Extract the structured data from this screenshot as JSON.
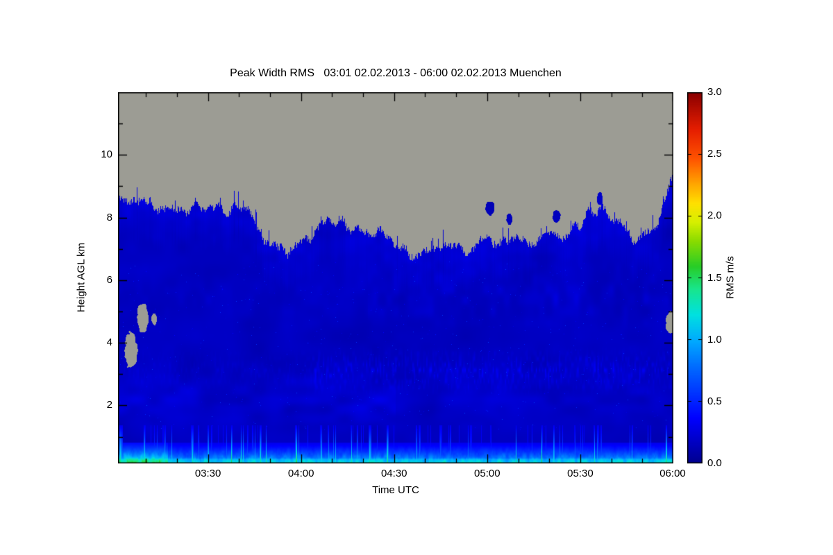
{
  "chart_data": {
    "type": "heatmap",
    "title": "Peak Width RMS   03:01 02.02.2013 - 06:00 02.02.2013 Muenchen",
    "xlabel": "Time UTC",
    "ylabel": "Height AGL km",
    "colorbar_label": "RMS m/s",
    "location": "Muenchen",
    "date": "02.02.2013",
    "time_start": "03:01",
    "time_end": "06:00",
    "duration_minutes": 179,
    "x_ticks": [
      {
        "label": "03:30",
        "minute": 29
      },
      {
        "label": "04:00",
        "minute": 59
      },
      {
        "label": "04:30",
        "minute": 89
      },
      {
        "label": "05:00",
        "minute": 119
      },
      {
        "label": "05:30",
        "minute": 149
      },
      {
        "label": "06:00",
        "minute": 179
      }
    ],
    "x_minor_interval_minutes": 10,
    "y_ticks": [
      2,
      4,
      6,
      8,
      10
    ],
    "y_minor_ticks": [
      1,
      3,
      5,
      7,
      9,
      11
    ],
    "height_range_km": [
      0.15,
      12.0
    ],
    "value_range_ms": [
      0.0,
      3.0
    ],
    "colorbar_ticks": [
      {
        "label": "0.0",
        "value": 0.0
      },
      {
        "label": "0.5",
        "value": 0.5
      },
      {
        "label": "1.0",
        "value": 1.0
      },
      {
        "label": "1.5",
        "value": 1.5
      },
      {
        "label": "2.0",
        "value": 2.0
      },
      {
        "label": "2.5",
        "value": 2.5
      },
      {
        "label": "3.0",
        "value": 3.0
      }
    ],
    "no_data_color": "#9C9C94",
    "colormap": [
      [
        0.0,
        "#00008F"
      ],
      [
        0.12,
        "#0000FF"
      ],
      [
        0.25,
        "#0064FF"
      ],
      [
        0.33,
        "#00AAFF"
      ],
      [
        0.4,
        "#00E1E1"
      ],
      [
        0.47,
        "#19E68C"
      ],
      [
        0.53,
        "#28CD28"
      ],
      [
        0.6,
        "#8CDC00"
      ],
      [
        0.65,
        "#D7F000"
      ],
      [
        0.7,
        "#FFE100"
      ],
      [
        0.75,
        "#FFAA00"
      ],
      [
        0.82,
        "#FF5500"
      ],
      [
        0.9,
        "#E61E00"
      ],
      [
        1.0,
        "#8B0000"
      ]
    ],
    "field": {
      "base_rms": 0.13,
      "cloud_top_km": [
        8.6,
        8.55,
        8.45,
        8.4,
        8.32,
        8.3,
        8.28,
        8.25,
        7.1,
        6.85,
        7.2,
        7.75,
        7.85,
        7.55,
        7.6,
        7.1,
        6.6,
        6.9,
        7.0,
        7.05,
        7.15,
        7.2,
        7.25,
        7.35,
        7.45,
        7.9,
        8.3,
        7.8,
        7.35,
        7.7,
        9.3
      ],
      "surface_band": {
        "top_km": 0.8,
        "peak_rms": 1.45,
        "left_boost_until_frac": 0.09
      },
      "layers": [
        {
          "center_km": 2.2,
          "halfwidth_km": 1.3,
          "amp": 0.12
        },
        {
          "center_km": 3.1,
          "halfwidth_km": 0.8,
          "amp": 0.14
        },
        {
          "center_km": 5.5,
          "halfwidth_km": 1.2,
          "amp": 0.1
        }
      ],
      "no_data_holes": [
        {
          "t": 0.023,
          "h_km": 3.75,
          "rt": 0.011,
          "rh_km": 0.6
        },
        {
          "t": 0.044,
          "h_km": 4.8,
          "rt": 0.01,
          "rh_km": 0.45
        },
        {
          "t": 0.065,
          "h_km": 4.75,
          "rt": 0.005,
          "rh_km": 0.18
        },
        {
          "t": 0.995,
          "h_km": 4.65,
          "rt": 0.008,
          "rh_km": 0.38
        }
      ],
      "data_islands": [
        {
          "t": 0.67,
          "h_km": 8.3,
          "rt": 0.008,
          "rh_km": 0.22
        },
        {
          "t": 0.705,
          "h_km": 7.95,
          "rt": 0.005,
          "rh_km": 0.18
        },
        {
          "t": 0.79,
          "h_km": 8.05,
          "rt": 0.007,
          "rh_km": 0.2
        },
        {
          "t": 0.868,
          "h_km": 8.6,
          "rt": 0.005,
          "rh_km": 0.2
        }
      ]
    }
  }
}
